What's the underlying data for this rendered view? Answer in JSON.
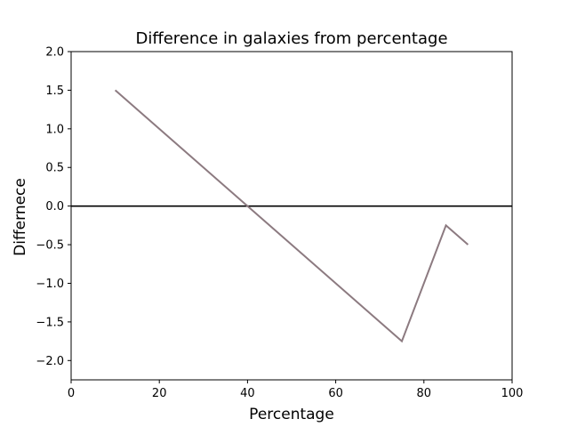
{
  "chart_data": {
    "type": "line",
    "title": "Difference in galaxies from percentage",
    "xlabel": "Percentage",
    "ylabel": "Differnece",
    "xlim": [
      0,
      100
    ],
    "ylim": [
      -2.25,
      2.0
    ],
    "xticks": [
      0,
      20,
      40,
      60,
      80,
      100
    ],
    "xtick_labels": [
      "0",
      "20",
      "40",
      "60",
      "80",
      "100"
    ],
    "yticks": [
      -2.0,
      -1.5,
      -1.0,
      -0.5,
      0.0,
      0.5,
      1.0,
      1.5,
      2.0
    ],
    "ytick_labels": [
      "−2.0",
      "−1.5",
      "−1.0",
      "−0.5",
      "0.0",
      "0.5",
      "1.0",
      "1.5",
      "2.0"
    ],
    "grid": false,
    "series": [
      {
        "x": [
          10,
          75,
          85,
          90
        ],
        "y": [
          1.5,
          -1.75,
          -0.25,
          -0.5
        ],
        "color": "#8c7a80"
      }
    ],
    "reference_lines": [
      {
        "orientation": "horizontal",
        "y": 0.0,
        "color": "#000000"
      }
    ]
  }
}
